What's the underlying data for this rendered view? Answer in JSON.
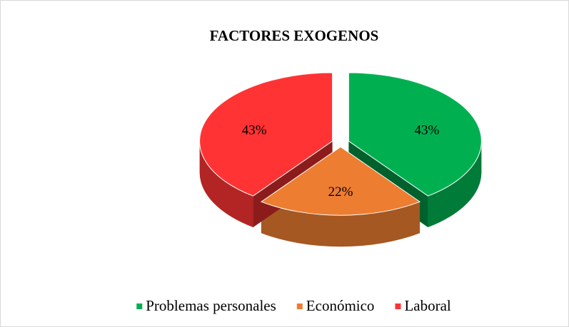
{
  "chart_data": {
    "type": "pie",
    "title": "FACTORES EXOGENOS",
    "categories": [
      "Problemas personales",
      "Económico",
      "Laboral"
    ],
    "values": [
      43,
      22,
      43
    ],
    "value_labels": [
      "43%",
      "22%",
      "43%"
    ],
    "colors": [
      "#00b050",
      "#ed7d31",
      "#ff3333"
    ],
    "legend": "bottom"
  }
}
